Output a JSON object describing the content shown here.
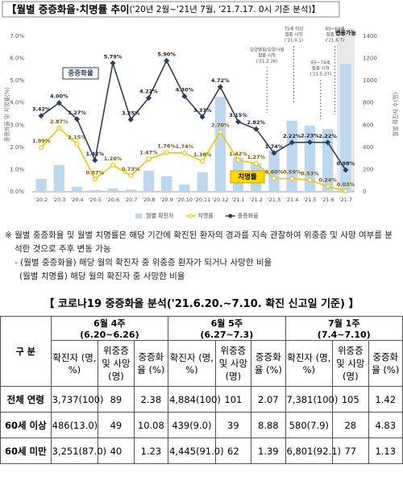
{
  "chart_data": {
    "type": "bar-line",
    "title": "【월별 중증화율·치명률 추이",
    "subtitle": "('20년 2월~'21년 7월, '21.7.17. 0시 기준 분석)】",
    "ylabel": "중증화율 및 치명률(%)",
    "y2label": "월별 확진자 수(명)",
    "categories": [
      "'20.2",
      "'20.3",
      "'20.4",
      "'20.5",
      "'20.6",
      "'20.7",
      "'20.8",
      "'20.9",
      "'20.10",
      "'20.11",
      "'20.12",
      "'21.1",
      "'21.2",
      "'21.3",
      "'21.4",
      "'21.5",
      "'21.6",
      "'21.7"
    ],
    "series": [
      {
        "name": "월별 확진자",
        "kind": "bar",
        "axis": "y2",
        "color": "#bdd7ee",
        "values": [
          116,
          240,
          45,
          15,
          30,
          20,
          190,
          140,
          65,
          175,
          855,
          310,
          255,
          375,
          640,
          595,
          565,
          1150
        ]
      },
      {
        "name": "치명률",
        "kind": "line",
        "axis": "y",
        "color": "#f2c500",
        "values": [
          1.99,
          2.87,
          2.15,
          0.57,
          1.2,
          0.73,
          1.47,
          1.76,
          1.74,
          1.38,
          2.7,
          1.42,
          1.27,
          0.6,
          0.59,
          0.53,
          0.24,
          0.03
        ],
        "value_labels": [
          "1.99%",
          "2.87%",
          "2.15%",
          "0.57%",
          "1.20%",
          "0.73%",
          "1.47%",
          "1.76%",
          "1.74%",
          "1.38%",
          "2.70%",
          "1.42%",
          "1.27%",
          "0.60%",
          "0.59%",
          "0.53%",
          "0.24%",
          "0.03%"
        ]
      },
      {
        "name": "중증화율",
        "kind": "line",
        "axis": "y",
        "color": "#2e3f5c",
        "values": [
          3.42,
          4.0,
          3.27,
          1.42,
          5.79,
          3.25,
          4.22,
          5.9,
          4.3,
          3.37,
          4.72,
          3.15,
          2.82,
          1.74,
          2.22,
          2.23,
          2.22,
          0.98
        ],
        "value_labels": [
          "3.42%",
          "4.00%",
          "3.27%",
          "1.42%",
          "5.79%",
          "3.25%",
          "4.22%",
          "5.90%",
          "4.30%",
          "3.37%",
          "4.72%",
          "3.15%",
          "2.82%",
          "1.74%",
          "2.22%",
          "2.23%",
          "2.22%",
          "0.98%"
        ]
      }
    ],
    "ylim": [
      0,
      7
    ],
    "yticks": [
      {
        "value": 0,
        "label": "0.0%"
      },
      {
        "value": 1,
        "label": "1.0%"
      },
      {
        "value": 2,
        "label": "2.0%"
      },
      {
        "value": 3,
        "label": "3.0%"
      },
      {
        "value": 4,
        "label": "4.0%"
      },
      {
        "value": 5,
        "label": "5.0%"
      },
      {
        "value": 6,
        "label": "6.0%"
      },
      {
        "value": 7,
        "label": "7.0%"
      }
    ],
    "y2lim": [
      0,
      1400
    ],
    "y2ticks": [
      0,
      200,
      400,
      600,
      800,
      1000,
      1200,
      1400
    ],
    "grid": false,
    "legend": "bottom",
    "highlight_label": "변동가능",
    "annotations": [
      [
        "요양병원/요양시설",
        "접종 시작",
        "('21.2.26)"
      ],
      [
        "75세 이상",
        "접종 시작",
        "('21.4.1)"
      ],
      [
        "65~74세",
        "접종 시작",
        "('21.5.27)"
      ],
      [
        "60~64세",
        "접종 시작",
        "('21.6.7)"
      ]
    ]
  },
  "notes": [
    "※ 월별 중증화율 및 월별 치명률은 해당 기간에 확진된 환자의 경과를 지속 관찰하여 위중증 및 사망 여부를 분석한 것으로 추후 변동 가능",
    "- (월별 중증화율) 해당 월의 확진자 중 위중증 환자가 되거나 사망한 비율",
    "(월별 치명률) 해당 월의 확진자 중 사망한 비율"
  ],
  "table": {
    "title": "【 코로나19 중증화율 분석('21.6.20.~7.10. 확진 신고일 기준) 】",
    "corner": "구 분",
    "groups": [
      {
        "name": "6월 4주",
        "period": "(6.20~6.26)"
      },
      {
        "name": "6월 5주",
        "period": "(6.27~7.3)"
      },
      {
        "name": "7월 1주",
        "period": "(7.4~7.10)"
      }
    ],
    "subheaders": [
      "확진자 (명, %)",
      "위중증 및 사망 (명)",
      "중증화율 (%)"
    ],
    "rows": [
      [
        "전체 연령",
        "3,737(100)",
        "89",
        "2.38",
        "4,884(100)",
        "101",
        "2.07",
        "7,381(100)",
        "105",
        "1.42"
      ],
      [
        "60세 이상",
        "486(13.0)",
        "49",
        "10.08",
        "439(9.0)",
        "39",
        "8.88",
        "580(7.9)",
        "28",
        "4.83"
      ],
      [
        "60세 미만",
        "3,251(87.0)",
        "40",
        "1.23",
        "4,445(91.0)",
        "62",
        "1.39",
        "6,801(92.1)",
        "77",
        "1.13"
      ]
    ]
  }
}
